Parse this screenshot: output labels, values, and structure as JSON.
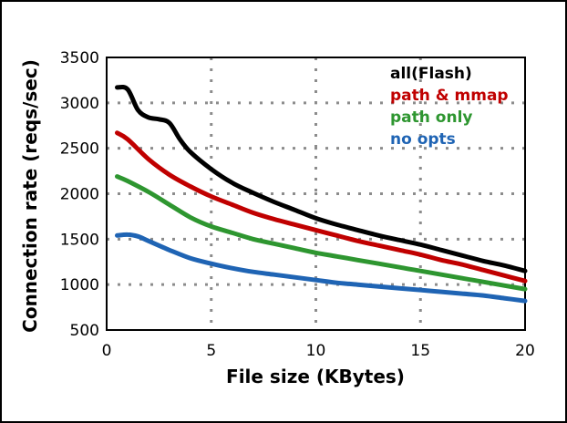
{
  "chart_data": {
    "type": "line",
    "title": "",
    "xlabel": "File size (KBytes)",
    "ylabel": "Connection rate (reqs/sec)",
    "xlim": [
      0,
      20
    ],
    "ylim": [
      500,
      3500
    ],
    "xticks": [
      0,
      5,
      10,
      15,
      20
    ],
    "yticks": [
      500,
      1000,
      1500,
      2000,
      2500,
      3000,
      3500
    ],
    "xtick_labels": [
      "0",
      "5",
      "10",
      "15",
      "20"
    ],
    "ytick_labels": [
      "500",
      "1000",
      "1500",
      "2000",
      "2500",
      "3000",
      "3500"
    ],
    "grid": "dotted",
    "legend_position": "top-right",
    "series": [
      {
        "name": "all(Flash)",
        "color": "#000000",
        "x": [
          0.5,
          1,
          1.5,
          2,
          2.5,
          3,
          3.5,
          4,
          5,
          6,
          7,
          8,
          9,
          10,
          11,
          12,
          13,
          14,
          15,
          16,
          17,
          18,
          19,
          20
        ],
        "y": [
          3170,
          3150,
          2920,
          2840,
          2820,
          2780,
          2600,
          2460,
          2270,
          2120,
          2010,
          1910,
          1820,
          1730,
          1660,
          1600,
          1540,
          1490,
          1440,
          1380,
          1320,
          1260,
          1210,
          1150
        ]
      },
      {
        "name": "path & mmap",
        "color": "#c00000",
        "x": [
          0.5,
          1,
          2,
          3,
          4,
          5,
          6,
          7,
          8,
          9,
          10,
          11,
          12,
          13,
          14,
          15,
          16,
          17,
          18,
          19,
          20
        ],
        "y": [
          2670,
          2600,
          2380,
          2210,
          2080,
          1970,
          1880,
          1790,
          1720,
          1660,
          1600,
          1540,
          1480,
          1430,
          1380,
          1330,
          1270,
          1220,
          1160,
          1100,
          1040
        ]
      },
      {
        "name": "path only",
        "color": "#2e9630",
        "x": [
          0.5,
          1,
          2,
          3,
          4,
          5,
          6,
          7,
          8,
          9,
          10,
          11,
          12,
          13,
          14,
          15,
          16,
          17,
          18,
          19,
          20
        ],
        "y": [
          2190,
          2140,
          2020,
          1880,
          1740,
          1640,
          1570,
          1500,
          1450,
          1400,
          1350,
          1310,
          1270,
          1230,
          1190,
          1150,
          1110,
          1070,
          1030,
          990,
          950
        ]
      },
      {
        "name": "no opts",
        "color": "#1f64b4",
        "x": [
          0.5,
          1,
          1.5,
          2,
          3,
          4,
          5,
          6,
          7,
          8,
          9,
          10,
          11,
          12,
          13,
          14,
          15,
          16,
          17,
          18,
          19,
          20
        ],
        "y": [
          1540,
          1550,
          1530,
          1480,
          1380,
          1290,
          1230,
          1180,
          1140,
          1110,
          1080,
          1050,
          1020,
          1000,
          980,
          960,
          940,
          920,
          900,
          880,
          850,
          820
        ]
      }
    ]
  }
}
